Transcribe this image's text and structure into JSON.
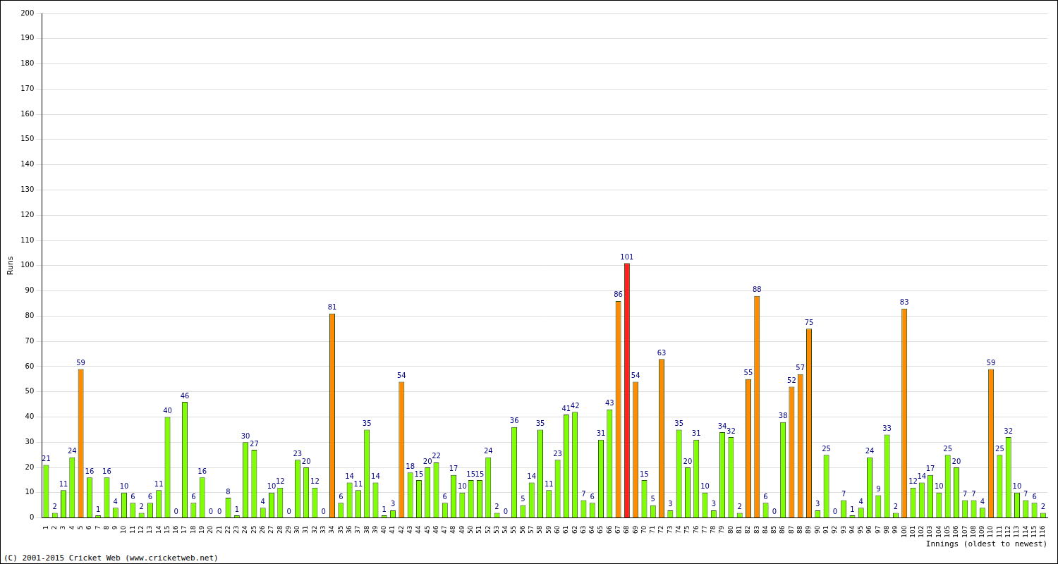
{
  "chart_data": {
    "type": "bar",
    "y_label": "Runs",
    "x_label": "Innings (oldest to newest)",
    "annotations": [
      "(C) 2001-2015 Cricket Web (www.cricketweb.net)"
    ],
    "categories": [
      1,
      2,
      3,
      4,
      5,
      6,
      7,
      8,
      9,
      10,
      11,
      12,
      13,
      14,
      15,
      16,
      17,
      18,
      19,
      20,
      21,
      22,
      23,
      24,
      25,
      26,
      27,
      28,
      29,
      30,
      31,
      32,
      33,
      34,
      35,
      36,
      37,
      38,
      39,
      40,
      41,
      42,
      43,
      44,
      45,
      46,
      47,
      48,
      49,
      50,
      51,
      52,
      53,
      54,
      55,
      56,
      57,
      58,
      59,
      60,
      61,
      62,
      63,
      64,
      65,
      66,
      67,
      68,
      69,
      70,
      71,
      72,
      73,
      74,
      75,
      76,
      77,
      78,
      79,
      80,
      81,
      82,
      83,
      84,
      85,
      86,
      87,
      88,
      89,
      90,
      91,
      92,
      93,
      94,
      95,
      96,
      97,
      98,
      99,
      100,
      101,
      102,
      103,
      104,
      105,
      106,
      107,
      108,
      109,
      110,
      111,
      112,
      113,
      114,
      115,
      116
    ],
    "values": [
      21,
      2,
      11,
      24,
      59,
      16,
      1,
      16,
      4,
      10,
      6,
      2,
      6,
      11,
      40,
      0,
      46,
      6,
      16,
      0,
      0,
      8,
      1,
      30,
      27,
      4,
      10,
      12,
      0,
      23,
      20,
      12,
      0,
      81,
      6,
      14,
      11,
      35,
      14,
      1,
      3,
      54,
      18,
      15,
      20,
      22,
      6,
      17,
      10,
      15,
      15,
      24,
      2,
      0,
      36,
      5,
      14,
      35,
      11,
      23,
      41,
      42,
      7,
      6,
      31,
      43,
      86,
      101,
      54,
      15,
      5,
      63,
      3,
      35,
      20,
      31,
      10,
      3,
      34,
      32,
      2,
      55,
      88,
      6,
      0,
      38,
      52,
      57,
      75,
      3,
      25,
      0,
      7,
      1,
      4,
      24,
      9,
      33,
      2,
      83,
      12,
      14,
      17,
      10,
      25,
      20,
      7,
      7,
      4,
      59,
      25,
      32,
      10,
      7,
      6,
      2
    ],
    "colors": [
      "#7fff00",
      "#7fff00",
      "#7fff00",
      "#7fff00",
      "#ff8c00",
      "#7fff00",
      "#7fff00",
      "#7fff00",
      "#7fff00",
      "#7fff00",
      "#7fff00",
      "#7fff00",
      "#7fff00",
      "#7fff00",
      "#7fff00",
      "#7fff00",
      "#7fff00",
      "#7fff00",
      "#7fff00",
      "#7fff00",
      "#7fff00",
      "#7fff00",
      "#7fff00",
      "#7fff00",
      "#7fff00",
      "#7fff00",
      "#7fff00",
      "#7fff00",
      "#7fff00",
      "#7fff00",
      "#7fff00",
      "#7fff00",
      "#7fff00",
      "#ff8c00",
      "#7fff00",
      "#7fff00",
      "#7fff00",
      "#7fff00",
      "#7fff00",
      "#7fff00",
      "#7fff00",
      "#ff8c00",
      "#7fff00",
      "#7fff00",
      "#7fff00",
      "#7fff00",
      "#7fff00",
      "#7fff00",
      "#7fff00",
      "#7fff00",
      "#7fff00",
      "#7fff00",
      "#7fff00",
      "#7fff00",
      "#7fff00",
      "#7fff00",
      "#7fff00",
      "#7fff00",
      "#7fff00",
      "#7fff00",
      "#7fff00",
      "#7fff00",
      "#7fff00",
      "#7fff00",
      "#7fff00",
      "#7fff00",
      "#ff8c00",
      "#ff2020",
      "#ff8c00",
      "#7fff00",
      "#7fff00",
      "#ff8c00",
      "#7fff00",
      "#7fff00",
      "#7fff00",
      "#7fff00",
      "#7fff00",
      "#7fff00",
      "#7fff00",
      "#7fff00",
      "#7fff00",
      "#ff8c00",
      "#ff8c00",
      "#7fff00",
      "#7fff00",
      "#7fff00",
      "#ff8c00",
      "#ff8c00",
      "#ff8c00",
      "#7fff00",
      "#7fff00",
      "#7fff00",
      "#7fff00",
      "#7fff00",
      "#7fff00",
      "#7fff00",
      "#7fff00",
      "#7fff00",
      "#7fff00",
      "#ff8c00",
      "#7fff00",
      "#7fff00",
      "#7fff00",
      "#7fff00",
      "#7fff00",
      "#7fff00",
      "#7fff00",
      "#7fff00",
      "#7fff00",
      "#ff8c00",
      "#7fff00",
      "#7fff00",
      "#7fff00",
      "#7fff00",
      "#7fff00",
      "#7fff00"
    ],
    "ylim": [
      0,
      200
    ],
    "yticks": [
      0,
      10,
      20,
      30,
      40,
      50,
      60,
      70,
      80,
      90,
      100,
      110,
      120,
      130,
      140,
      150,
      160,
      170,
      180,
      190,
      200
    ],
    "grid": true,
    "data_labels": true
  }
}
